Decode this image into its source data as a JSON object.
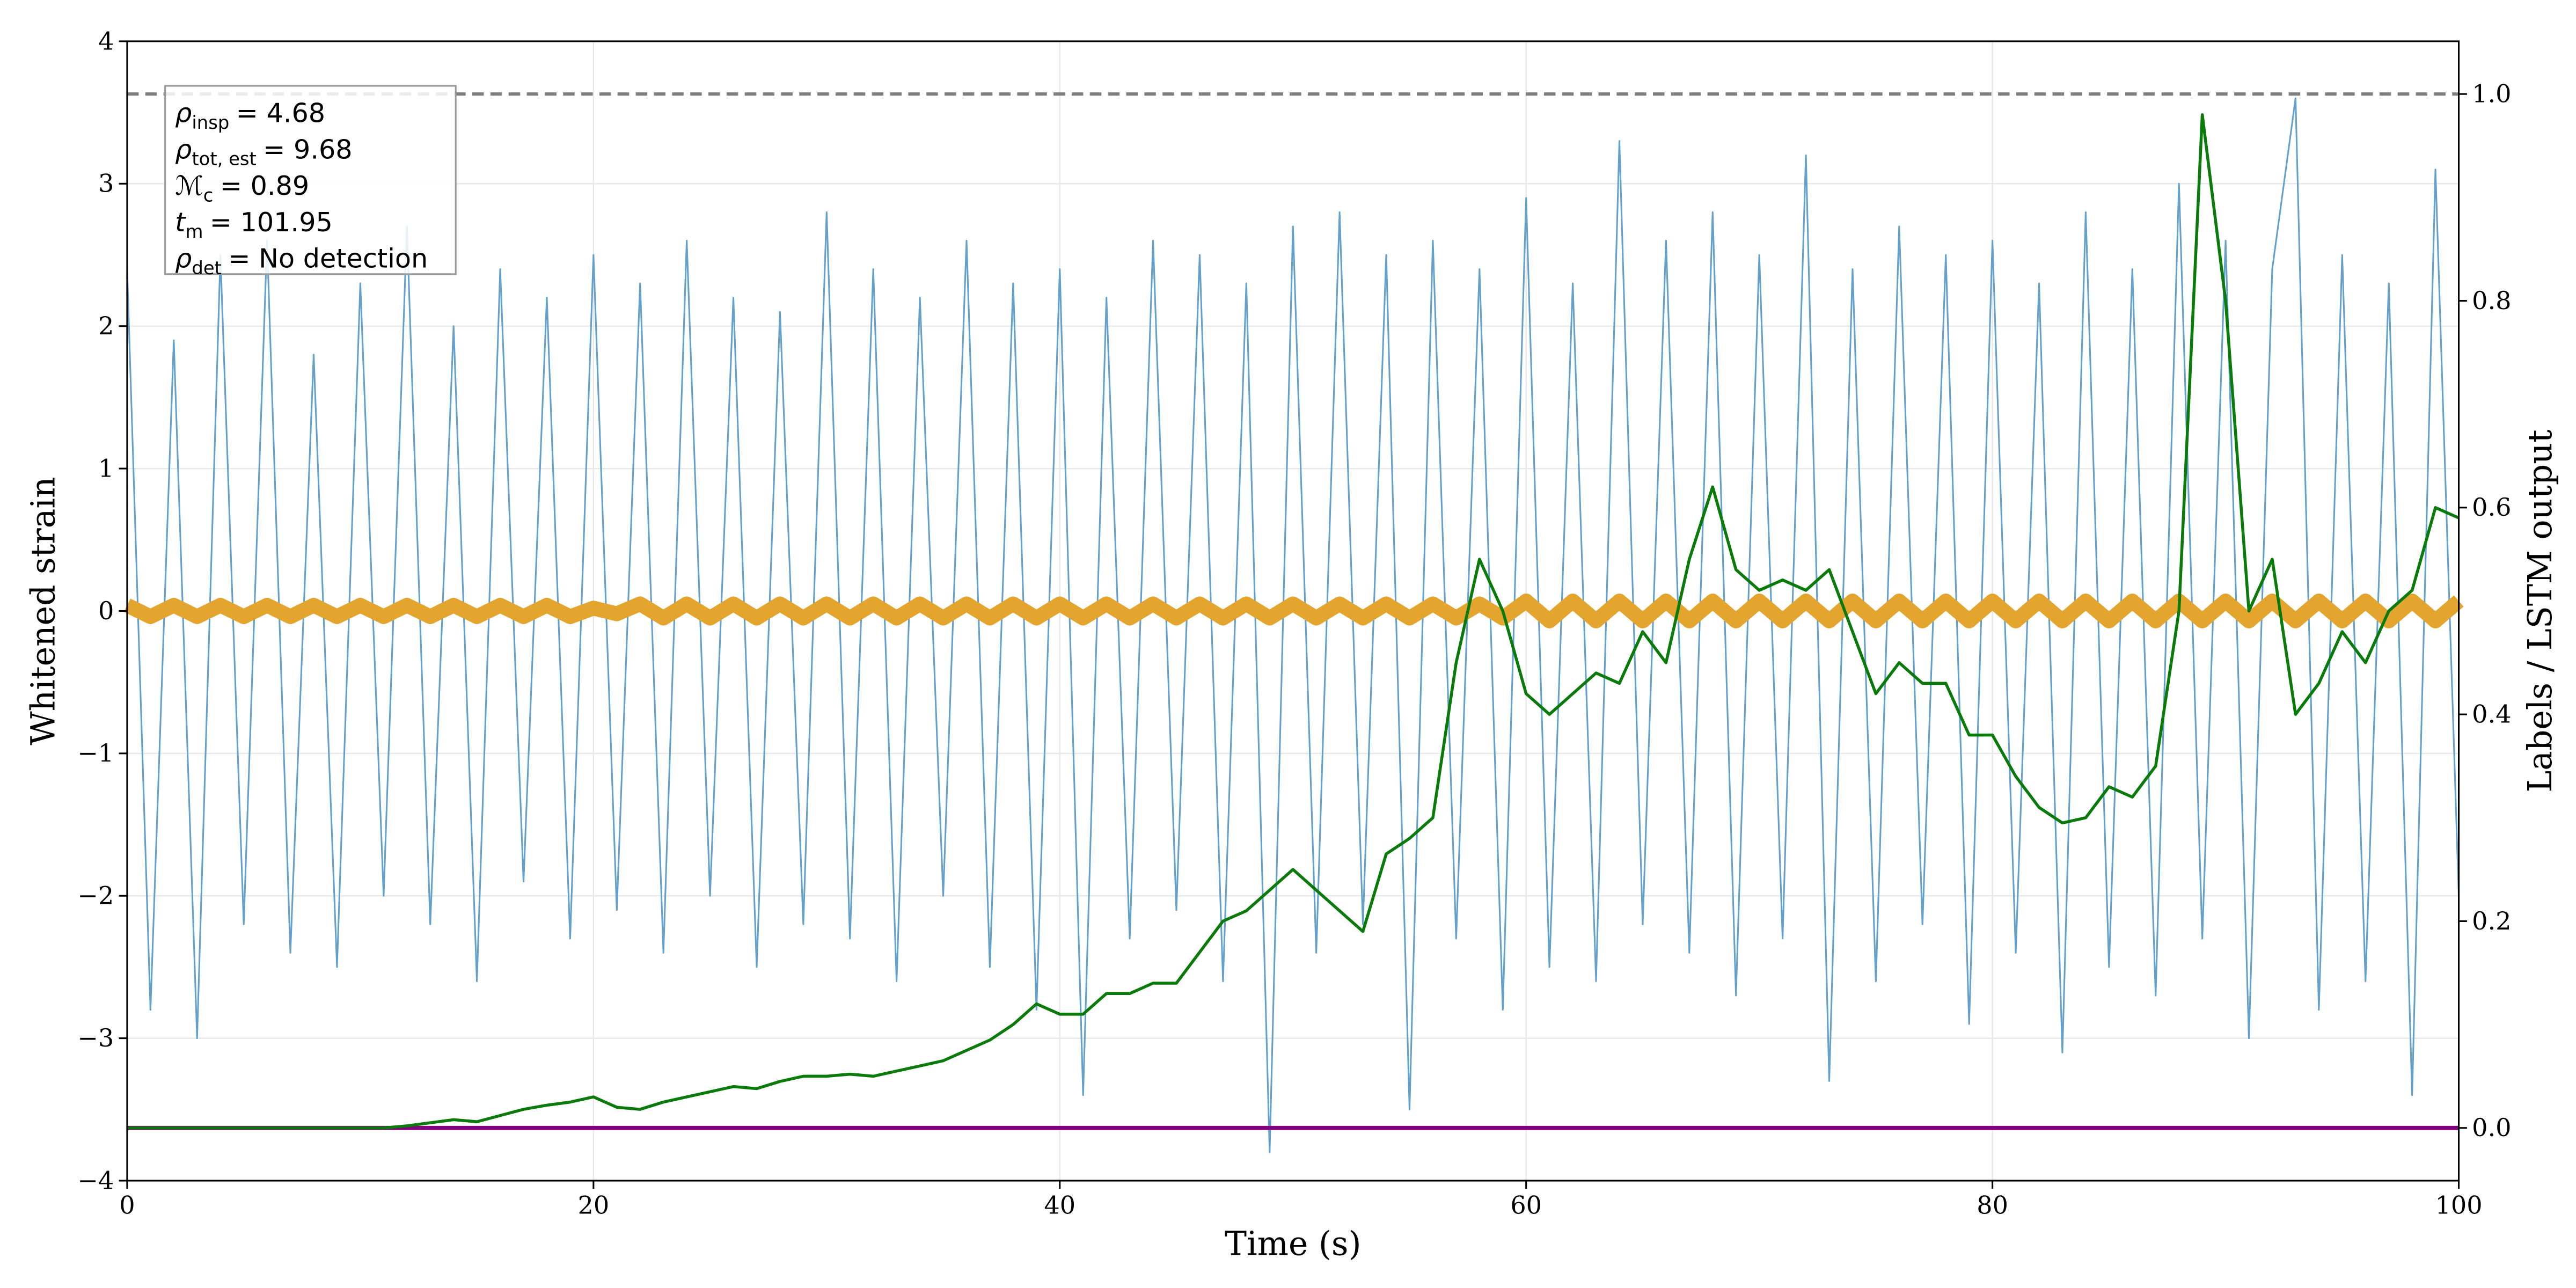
{
  "chart_data": {
    "type": "line",
    "x_label": "Time (s)",
    "y_label": "Whitened strain",
    "y2_label": "Labels / LSTM output",
    "xlim": [
      0,
      100
    ],
    "xticks": [
      0,
      20,
      40,
      60,
      80,
      100
    ],
    "ylim": [
      -4,
      4
    ],
    "yticks": [
      {
        "value": -4,
        "label": "−4"
      },
      {
        "value": -3,
        "label": "−3"
      },
      {
        "value": -2,
        "label": "−2"
      },
      {
        "value": -1,
        "label": "−1"
      },
      0,
      1,
      2,
      3,
      4
    ],
    "y2lim": [
      -0.051,
      1.051
    ],
    "y2ticks": [
      {
        "value": 0,
        "label": "0.0"
      },
      {
        "value": 0.2,
        "label": "0.2"
      },
      {
        "value": 0.4,
        "label": "0.4"
      },
      {
        "value": 0.6,
        "label": "0.6"
      },
      {
        "value": 0.8,
        "label": "0.8"
      },
      {
        "value": 1,
        "label": "1.0"
      }
    ],
    "grid": true,
    "threshold": {
      "value": 1,
      "axis": "y2",
      "color": "#808080"
    },
    "annotations": [
      {
        "symbol": "ρ",
        "sub": "insp",
        "text": "= 4.68"
      },
      {
        "symbol": "ρ",
        "sub": "tot, est",
        "text": "= 9.68"
      },
      {
        "symbol": "ℳ",
        "sub": "c",
        "text": "= 0.89"
      },
      {
        "symbol": "t",
        "sub": "m",
        "text": "= 101.95"
      },
      {
        "symbol": "ρ",
        "sub": "det",
        "text": "= No detection"
      }
    ],
    "x": [
      0,
      1,
      2,
      3,
      4,
      5,
      6,
      7,
      8,
      9,
      10,
      11,
      12,
      13,
      14,
      15,
      16,
      17,
      18,
      19,
      20,
      21,
      22,
      23,
      24,
      25,
      26,
      27,
      28,
      29,
      30,
      31,
      32,
      33,
      34,
      35,
      36,
      37,
      38,
      39,
      40,
      41,
      42,
      43,
      44,
      45,
      46,
      47,
      48,
      49,
      50,
      51,
      52,
      53,
      54,
      55,
      56,
      57,
      58,
      59,
      60,
      61,
      62,
      63,
      64,
      65,
      66,
      67,
      68,
      69,
      70,
      71,
      72,
      73,
      74,
      75,
      76,
      77,
      78,
      79,
      80,
      81,
      82,
      83,
      84,
      85,
      86,
      87,
      88,
      89,
      90,
      91,
      92,
      93,
      94,
      95,
      96,
      97,
      98,
      99,
      100
    ],
    "series": [
      {
        "color": "#5b9bc9",
        "axis": "y",
        "values": [
          2.4,
          -2.8,
          1.9,
          -3.0,
          2.5,
          -2.2,
          2.6,
          -2.4,
          1.8,
          -2.5,
          2.3,
          -2.0,
          2.7,
          -2.2,
          2.0,
          -2.6,
          2.4,
          -1.9,
          2.2,
          -2.3,
          2.5,
          -2.1,
          2.3,
          -2.4,
          2.6,
          -2.0,
          2.2,
          -2.5,
          2.1,
          -2.2,
          2.8,
          -2.3,
          2.4,
          -2.6,
          2.2,
          -2.0,
          2.6,
          -2.5,
          2.3,
          -2.8,
          2.4,
          -3.4,
          2.2,
          -2.3,
          2.6,
          -2.1,
          2.5,
          -2.6,
          2.3,
          -3.8,
          2.7,
          -2.4,
          2.8,
          -2.2,
          2.5,
          -3.5,
          2.6,
          -2.3,
          2.4,
          -2.8,
          2.9,
          -2.5,
          2.3,
          -2.6,
          3.3,
          -2.2,
          2.6,
          -2.4,
          2.8,
          -2.7,
          2.5,
          -2.3,
          3.2,
          -3.3,
          2.4,
          -2.6,
          2.7,
          -2.2,
          2.5,
          -2.9,
          2.6,
          -2.4,
          2.3,
          -3.1,
          2.8,
          -2.5,
          2.4,
          -2.7,
          3.0,
          -2.3,
          2.6,
          -3.0,
          2.4,
          3.6,
          -2.8,
          2.5,
          -2.6,
          2.3,
          -3.4,
          3.1,
          -2.0
        ]
      },
      {
        "color": "#e3a52e",
        "axis": "y",
        "values": [
          0.04,
          -0.04,
          0.04,
          -0.04,
          0.04,
          -0.04,
          0.04,
          -0.04,
          0.04,
          -0.04,
          0.04,
          -0.04,
          0.04,
          -0.04,
          0.04,
          -0.04,
          0.04,
          -0.04,
          0.04,
          -0.04,
          0.02,
          -0.02,
          0.05,
          -0.05,
          0.05,
          -0.05,
          0.05,
          -0.05,
          0.05,
          -0.05,
          0.05,
          -0.05,
          0.05,
          -0.05,
          0.05,
          -0.05,
          0.05,
          -0.05,
          0.05,
          -0.05,
          0.05,
          -0.05,
          0.05,
          -0.05,
          0.05,
          -0.05,
          0.05,
          -0.05,
          0.05,
          -0.05,
          0.05,
          -0.05,
          0.05,
          -0.05,
          0.05,
          -0.05,
          0.05,
          -0.05,
          0.05,
          -0.05,
          0.07,
          -0.07,
          0.07,
          -0.07,
          0.07,
          -0.07,
          0.07,
          -0.07,
          0.07,
          -0.07,
          0.07,
          -0.07,
          0.07,
          -0.07,
          0.07,
          -0.07,
          0.07,
          -0.07,
          0.07,
          -0.07,
          0.07,
          -0.07,
          0.07,
          -0.07,
          0.07,
          -0.07,
          0.07,
          -0.07,
          0.07,
          -0.07,
          0.07,
          -0.07,
          0.07,
          -0.07,
          0.07,
          -0.07,
          0.07,
          -0.07,
          0.07,
          -0.07,
          0.07
        ]
      },
      {
        "color": "#800080",
        "axis": "y2",
        "x": [
          0,
          100
        ],
        "values": [
          0,
          0
        ]
      },
      {
        "color": "#0a7a0a",
        "axis": "y2",
        "values": [
          0,
          0,
          0,
          0,
          0,
          0,
          0,
          0,
          0,
          0,
          0,
          0,
          0.002,
          0.005,
          0.008,
          0.006,
          0.012,
          0.018,
          0.022,
          0.025,
          0.03,
          0.02,
          0.018,
          0.025,
          0.03,
          0.035,
          0.04,
          0.038,
          0.045,
          0.05,
          0.05,
          0.052,
          0.05,
          0.055,
          0.06,
          0.065,
          0.075,
          0.085,
          0.1,
          0.12,
          0.11,
          0.11,
          0.13,
          0.13,
          0.14,
          0.14,
          0.17,
          0.2,
          0.21,
          0.23,
          0.25,
          0.23,
          0.21,
          0.19,
          0.265,
          0.28,
          0.3,
          0.45,
          0.55,
          0.5,
          0.42,
          0.4,
          0.42,
          0.44,
          0.43,
          0.48,
          0.45,
          0.55,
          0.62,
          0.54,
          0.52,
          0.53,
          0.52,
          0.54,
          0.48,
          0.42,
          0.45,
          0.43,
          0.43,
          0.38,
          0.38,
          0.34,
          0.31,
          0.295,
          0.3,
          0.33,
          0.32,
          0.35,
          0.5,
          0.98,
          0.8,
          0.5,
          0.55,
          0.4,
          0.43,
          0.48,
          0.45,
          0.5,
          0.52,
          0.6,
          0.59
        ]
      }
    ]
  }
}
